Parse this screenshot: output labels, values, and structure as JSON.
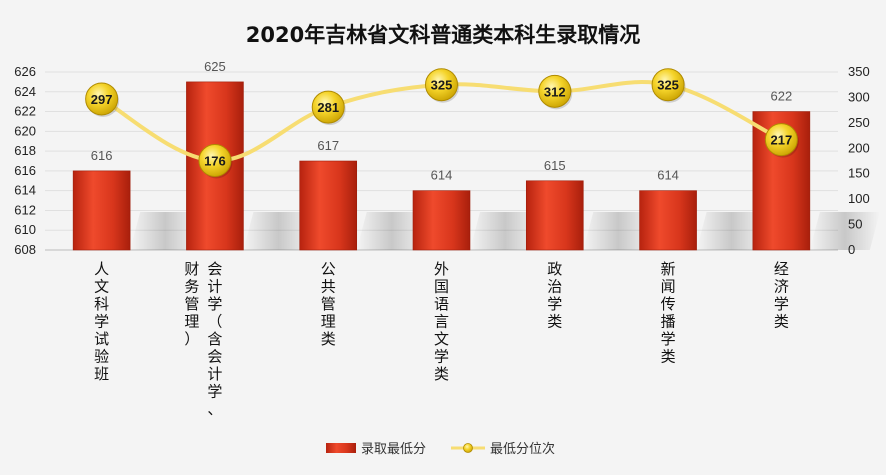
{
  "chart_data": {
    "type": "bar",
    "title": "2020年吉林省文科普通类本科生录取情况",
    "categories": [
      "人文科学试验班",
      "会计学（含会计学、财务管理）",
      "公共管理类",
      "外国语言文学类",
      "政治学类",
      "新闻传播学类",
      "经济学类"
    ],
    "series": [
      {
        "name": "录取最低分",
        "type": "bar",
        "axis": "left",
        "color": "#d8361c",
        "values": [
          616,
          625,
          617,
          614,
          615,
          614,
          622
        ]
      },
      {
        "name": "最低分位次",
        "type": "line",
        "axis": "right",
        "color": "#f7dd72",
        "marker_color": "#f2cf1d",
        "values": [
          297,
          176,
          281,
          325,
          312,
          325,
          217
        ]
      }
    ],
    "y_left": {
      "min": 608,
      "max": 626,
      "step": 2
    },
    "y_right": {
      "min": 0,
      "max": 350,
      "step": 50
    },
    "legend_position": "bottom"
  }
}
